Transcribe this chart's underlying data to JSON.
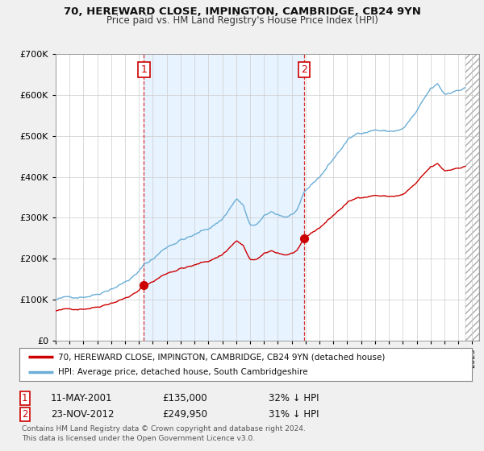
{
  "title": "70, HEREWARD CLOSE, IMPINGTON, CAMBRIDGE, CB24 9YN",
  "subtitle": "Price paid vs. HM Land Registry's House Price Index (HPI)",
  "legend_line1": "70, HEREWARD CLOSE, IMPINGTON, CAMBRIDGE, CB24 9YN (detached house)",
  "legend_line2": "HPI: Average price, detached house, South Cambridgeshire",
  "footer": "Contains HM Land Registry data © Crown copyright and database right 2024.\nThis data is licensed under the Open Government Licence v3.0.",
  "transaction1_date": "11-MAY-2001",
  "transaction1_price": "£135,000",
  "transaction1_hpi": "32% ↓ HPI",
  "transaction2_date": "23-NOV-2012",
  "transaction2_price": "£249,950",
  "transaction2_hpi": "31% ↓ HPI",
  "sale1_x": 2001.36,
  "sale1_y": 135000,
  "sale2_x": 2012.9,
  "sale2_y": 249950,
  "hpi_color": "#6baed6",
  "price_color": "#cc0000",
  "shade_color": "#ddeeff",
  "background_color": "#f0f0f0",
  "plot_bg_color": "#ffffff",
  "ylim": [
    0,
    700000
  ],
  "xlim_start": 1995.0,
  "xlim_end": 2025.5
}
